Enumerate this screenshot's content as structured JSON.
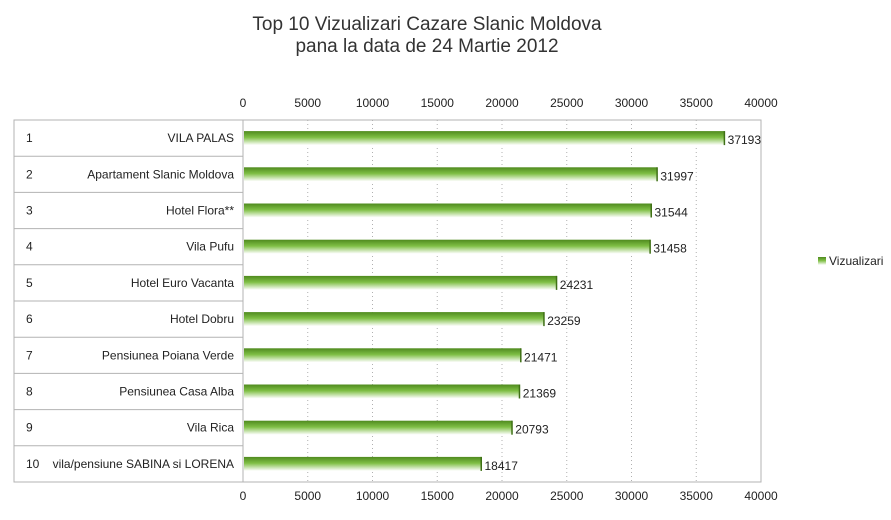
{
  "chart_data": {
    "type": "bar",
    "orientation": "horizontal",
    "title": [
      "Top 10 Vizualizari Cazare Slanic Moldova",
      "pana la data de 24 Martie 2012"
    ],
    "ranks": [
      "1",
      "2",
      "3",
      "4",
      "5",
      "6",
      "7",
      "8",
      "9",
      "10"
    ],
    "categories": [
      "VILA PALAS",
      "Apartament Slanic Moldova",
      "Hotel Flora**",
      "Vila Pufu",
      "Hotel Euro Vacanta",
      "Hotel Dobru",
      "Pensiunea Poiana Verde",
      "Pensiunea Casa Alba",
      "Vila Rica",
      "vila/pensiune SABINA si LORENA"
    ],
    "series": [
      {
        "name": "Vizualizari",
        "values": [
          37193,
          31997,
          31544,
          31458,
          24231,
          23259,
          21471,
          21369,
          20793,
          18417
        ]
      }
    ],
    "xlim": [
      0,
      40000
    ],
    "xticks": [
      0,
      5000,
      10000,
      15000,
      20000,
      25000,
      30000,
      35000,
      40000
    ],
    "xaxis_position": "top-and-bottom",
    "grid": true,
    "legend_position": "right",
    "bar_color": "#6aa536"
  }
}
